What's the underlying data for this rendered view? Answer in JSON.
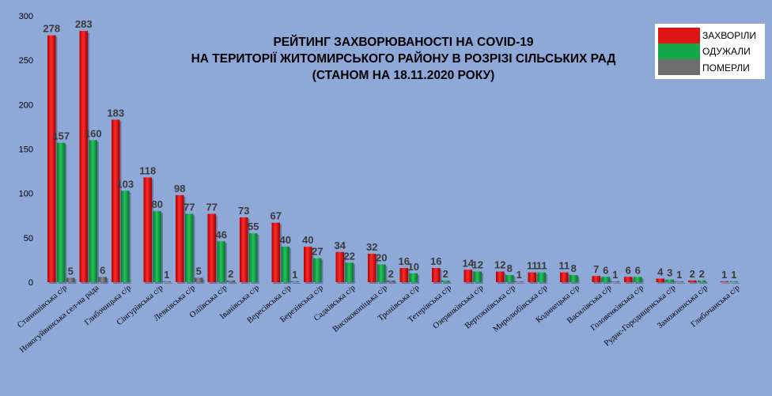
{
  "chart_data": {
    "type": "bar",
    "title": [
      "РЕЙТИНГ ЗАХВОРЮВАНОСТІ НА COVID-19",
      "НА ТЕРИТОРІЇ ЖИТОМИРСЬКОГО РАЙОНУ В РОЗРІЗІ СІЛЬСЬКИХ РАД",
      "(СТАНОМ НА 18.11.2020 РОКУ)"
    ],
    "ylim": [
      0,
      300
    ],
    "yticks": [
      "0",
      "50",
      "100",
      "150",
      "200",
      "250",
      "300"
    ],
    "legend_position": "top-right",
    "categories": [
      "Станишівська с/р",
      "Новогуйвинська сел-на рада",
      "Глибочицька с/р",
      "Сінгурівська с/р",
      "Левківська с/р",
      "Оліївська с/р",
      "Іванівська с/р",
      "Вересівська с/р",
      "Березівська с/р",
      "Садківська с/р",
      "Висококопіцька с/р",
      "Тронівська с/р",
      "Тетерівська с/р",
      "Озерянківська с/р",
      "Вертокиївська с/р",
      "Миролюбівська с/р",
      "Кодинецька с/р",
      "Василівська с/р",
      "Головенківська с/р",
      "Руднє-Городищенська с/р",
      "Заможненська с/р",
      "Глибочанська с/р"
    ],
    "series": [
      {
        "name": "ЗАХВОРІЛИ",
        "color": "#E01414",
        "values": [
          278,
          283,
          183,
          118,
          98,
          77,
          73,
          67,
          40,
          34,
          32,
          16,
          16,
          14,
          12,
          11,
          11,
          7,
          6,
          4,
          2,
          1
        ]
      },
      {
        "name": "ОДУЖАЛИ",
        "color": "#14A84A",
        "values": [
          157,
          160,
          103,
          80,
          77,
          46,
          55,
          40,
          27,
          22,
          20,
          10,
          2,
          12,
          8,
          11,
          8,
          6,
          6,
          3,
          2,
          1
        ]
      },
      {
        "name": "ПОМЕРЛИ",
        "color": "#6E6E6E",
        "values": [
          5,
          6,
          0,
          1,
          5,
          2,
          0,
          1,
          0,
          0,
          2,
          0,
          0,
          0,
          1,
          0,
          0,
          1,
          0,
          1,
          0,
          0
        ]
      }
    ],
    "data_labels": [
      [
        "278",
        "157",
        "5"
      ],
      [
        "283",
        "160",
        "6"
      ],
      [
        "183",
        "103",
        ""
      ],
      [
        "118",
        "80",
        "1"
      ],
      [
        "98",
        "77",
        "5"
      ],
      [
        "77",
        "46",
        "2"
      ],
      [
        "73",
        "55",
        ""
      ],
      [
        "67",
        "40",
        "1"
      ],
      [
        "40",
        "27",
        ""
      ],
      [
        "34",
        "22",
        ""
      ],
      [
        "32",
        "20",
        "2"
      ],
      [
        "16",
        "10",
        ""
      ],
      [
        "16",
        "2",
        ""
      ],
      [
        "14",
        "12",
        ""
      ],
      [
        "12",
        "8",
        "1"
      ],
      [
        "11",
        "11",
        ""
      ],
      [
        "11",
        "8",
        ""
      ],
      [
        "7",
        "6",
        "1"
      ],
      [
        "6",
        "6",
        ""
      ],
      [
        "4",
        "3",
        "1"
      ],
      [
        "2",
        "2",
        ""
      ],
      [
        "1",
        "1",
        ""
      ]
    ]
  }
}
